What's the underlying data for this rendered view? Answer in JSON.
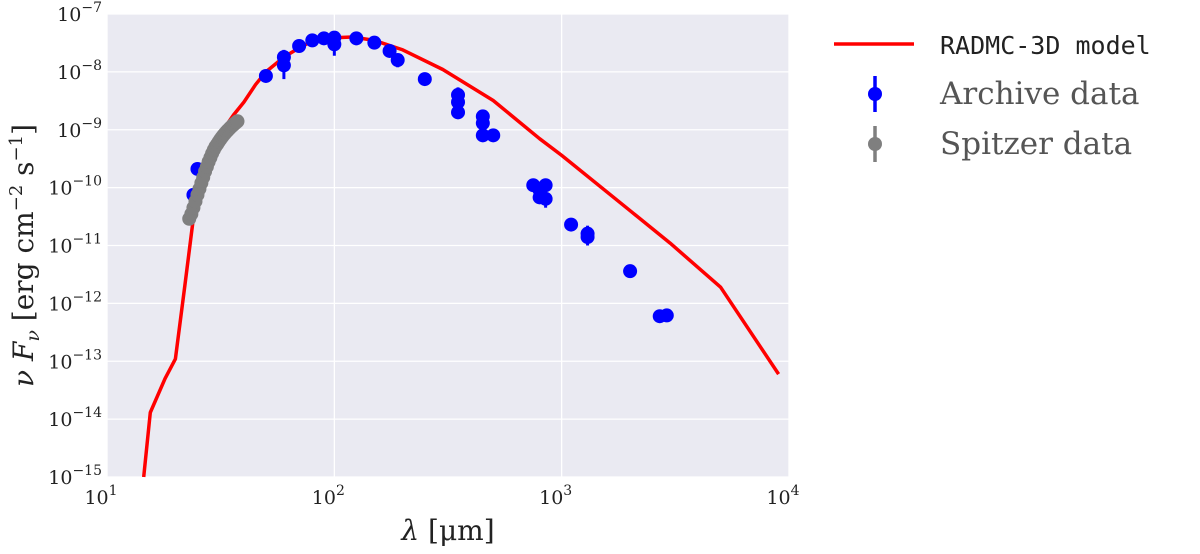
{
  "chart_data": {
    "type": "scatter",
    "xscale": "log",
    "yscale": "log",
    "xlim": [
      10,
      10000
    ],
    "ylim": [
      1e-15,
      1e-07
    ],
    "grid": true,
    "legend_position": "outside-right",
    "xlabel": {
      "symbol": "λ",
      "unit": "μm"
    },
    "ylabel": {
      "symbol": "ν",
      "symbol2": "F",
      "sub": "ν",
      "unit_a": "erg cm",
      "exp_a": "−2",
      "unit_b": "s",
      "exp_b": "−1"
    },
    "x_ticks": [
      {
        "base": "10",
        "exp": "1"
      },
      {
        "base": "10",
        "exp": "2"
      },
      {
        "base": "10",
        "exp": "3"
      },
      {
        "base": "10",
        "exp": "4"
      }
    ],
    "y_ticks": [
      {
        "base": "10",
        "exp": "−15"
      },
      {
        "base": "10",
        "exp": "−14"
      },
      {
        "base": "10",
        "exp": "−13"
      },
      {
        "base": "10",
        "exp": "−12"
      },
      {
        "base": "10",
        "exp": "−11"
      },
      {
        "base": "10",
        "exp": "−10"
      },
      {
        "base": "10",
        "exp": "−9"
      },
      {
        "base": "10",
        "exp": "−8"
      },
      {
        "base": "10",
        "exp": "−7"
      }
    ],
    "series": [
      {
        "name": "RADMC-3D model",
        "kind": "line",
        "color": "#ff0000",
        "points": [
          [
            14.5,
            1e-15
          ],
          [
            15.5,
            1.3e-14
          ],
          [
            18,
            5e-14
          ],
          [
            20,
            1.1e-13
          ],
          [
            22,
            2e-12
          ],
          [
            24,
            3e-11
          ],
          [
            26,
            1e-10
          ],
          [
            28,
            3e-10
          ],
          [
            30,
            6e-10
          ],
          [
            33,
            1.1e-09
          ],
          [
            36,
            1.8e-09
          ],
          [
            40,
            3e-09
          ],
          [
            45,
            6e-09
          ],
          [
            50,
            1e-08
          ],
          [
            60,
            1.8e-08
          ],
          [
            70,
            2.6e-08
          ],
          [
            80,
            3.4e-08
          ],
          [
            100,
            3.9e-08
          ],
          [
            120,
            4e-08
          ],
          [
            150,
            3.5e-08
          ],
          [
            200,
            2.4e-08
          ],
          [
            300,
            1.1e-08
          ],
          [
            500,
            3.2e-09
          ],
          [
            800,
            7e-10
          ],
          [
            1000,
            3.6e-10
          ],
          [
            2000,
            4e-11
          ],
          [
            3000,
            1.1e-11
          ],
          [
            5000,
            1.9e-12
          ],
          [
            9000,
            6e-14
          ]
        ]
      },
      {
        "name": "Archive data",
        "kind": "errorbar",
        "color": "#0000ff",
        "points": [
          [
            24,
            7.5e-11,
            6e-11,
            9e-11
          ],
          [
            25,
            2.1e-10,
            1.7e-10,
            2.6e-10
          ],
          [
            50,
            8.5e-09,
            7.5e-09,
            9.5e-09
          ],
          [
            60,
            1.8e-08,
            1.4e-08,
            2.4e-08
          ],
          [
            60,
            1.3e-08,
            7.5e-09,
            1.7e-08
          ],
          [
            70,
            2.8e-08,
            2.3e-08,
            3.2e-08
          ],
          [
            80,
            3.5e-08,
            3e-08,
            4e-08
          ],
          [
            90,
            3.8e-08,
            3.3e-08,
            4.3e-08
          ],
          [
            100,
            3.9e-08,
            3.1e-08,
            4.6e-08
          ],
          [
            100,
            3e-08,
            1.9e-08,
            4e-08
          ],
          [
            125,
            3.8e-08,
            2.9e-08,
            4.5e-08
          ],
          [
            150,
            3.2e-08,
            2.6e-08,
            3.8e-08
          ],
          [
            175,
            2.3e-08,
            1.9e-08,
            2.8e-08
          ],
          [
            190,
            1.6e-08,
            1.2e-08,
            2e-08
          ],
          [
            250,
            7.5e-09,
            6.8e-09,
            8.2e-09
          ],
          [
            350,
            4e-09,
            3e-09,
            5.4e-09
          ],
          [
            350,
            3e-09,
            2e-09,
            4e-09
          ],
          [
            350,
            2e-09,
            1.6e-09,
            2.4e-09
          ],
          [
            450,
            1.7e-09,
            1.2e-09,
            2.2e-09
          ],
          [
            450,
            1.3e-09,
            1e-09,
            1.7e-09
          ],
          [
            450,
            8e-10,
            7e-10,
            9e-10
          ],
          [
            500,
            8e-10,
            7e-10,
            9e-10
          ],
          [
            750,
            1.1e-10,
            8.7e-11,
            1.3e-10
          ],
          [
            800,
            9e-11,
            7e-11,
            1.2e-10
          ],
          [
            800,
            6.8e-11,
            5.5e-11,
            8.5e-11
          ],
          [
            850,
            1.1e-10,
            8.5e-11,
            1.35e-10
          ],
          [
            850,
            6.4e-11,
            4.5e-11,
            8e-11
          ],
          [
            1100,
            2.3e-11,
            2e-11,
            2.6e-11
          ],
          [
            1300,
            1.6e-11,
            1e-11,
            2.2e-11
          ],
          [
            1300,
            1.4e-11,
            1.1e-11,
            1.8e-11
          ],
          [
            2000,
            3.6e-12,
            3.1e-12,
            4.1e-12
          ],
          [
            2700,
            6e-13,
            5.4e-13,
            6.6e-13
          ],
          [
            2900,
            6.2e-13,
            5.6e-13,
            6.8e-13
          ]
        ]
      },
      {
        "name": "Spitzer data",
        "kind": "errorbar",
        "color": "#7f7f7f",
        "points": [
          [
            23.0,
            2.9e-11
          ],
          [
            23.5,
            3.5e-11
          ],
          [
            24.0,
            4.5e-11
          ],
          [
            24.5,
            5.8e-11
          ],
          [
            25.0,
            7.5e-11
          ],
          [
            25.5,
            9.5e-11
          ],
          [
            26.0,
            1.2e-10
          ],
          [
            26.5,
            1.5e-10
          ],
          [
            27.0,
            1.9e-10
          ],
          [
            27.5,
            2.3e-10
          ],
          [
            28.0,
            2.8e-10
          ],
          [
            28.5,
            3.3e-10
          ],
          [
            29.0,
            3.9e-10
          ],
          [
            29.5,
            4.5e-10
          ],
          [
            30.0,
            5.1e-10
          ],
          [
            30.5,
            5.6e-10
          ],
          [
            31.0,
            6.2e-10
          ],
          [
            31.5,
            6.8e-10
          ],
          [
            32.0,
            7.4e-10
          ],
          [
            32.5,
            8e-10
          ],
          [
            33.0,
            8.6e-10
          ],
          [
            33.5,
            9.2e-10
          ],
          [
            34.0,
            9.8e-10
          ],
          [
            34.5,
            1.04e-09
          ],
          [
            35.0,
            1.1e-09
          ],
          [
            35.5,
            1.16e-09
          ],
          [
            36.0,
            1.22e-09
          ],
          [
            36.5,
            1.28e-09
          ],
          [
            37.0,
            1.34e-09
          ],
          [
            37.5,
            1.4e-09
          ]
        ]
      }
    ],
    "legend": [
      {
        "label": "RADMC-3D model",
        "style": "line",
        "color": "#ff0000",
        "font": "mono"
      },
      {
        "label": "Archive data",
        "style": "errorbar",
        "color": "#0000ff",
        "font": "serif"
      },
      {
        "label": "Spitzer data",
        "style": "errorbar",
        "color": "#7f7f7f",
        "font": "serif"
      }
    ],
    "colors": {
      "background": "#eaeaf2",
      "grid": "#ffffff"
    }
  }
}
